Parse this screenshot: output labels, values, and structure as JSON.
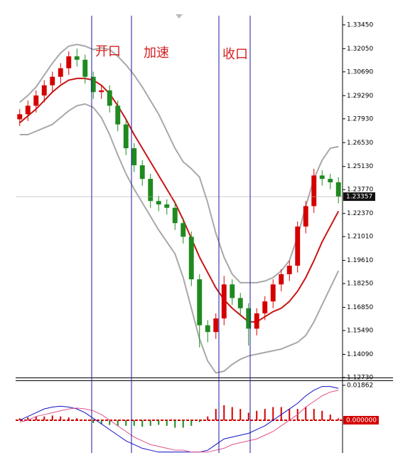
{
  "chart_data": [
    {
      "type": "candlestick",
      "annotations": [
        "开口",
        "加速",
        "收口"
      ],
      "open": [
        1.279,
        1.282,
        1.287,
        1.293,
        1.299,
        1.304,
        1.309,
        1.316,
        1.314,
        1.304,
        1.295,
        1.296,
        1.287,
        1.276,
        1.262,
        1.252,
        1.244,
        1.231,
        1.229,
        1.227,
        1.218,
        1.21,
        1.185,
        1.158,
        1.154,
        1.162,
        1.182,
        1.174,
        1.168,
        1.156,
        1.165,
        1.172,
        1.182,
        1.188,
        1.193,
        1.216,
        1.228,
        1.246,
        1.244,
        1.242
      ],
      "high": [
        1.285,
        1.29,
        1.296,
        1.302,
        1.307,
        1.312,
        1.319,
        1.3205,
        1.317,
        1.307,
        1.299,
        1.299,
        1.29,
        1.279,
        1.265,
        1.255,
        1.247,
        1.234,
        1.232,
        1.23,
        1.221,
        1.213,
        1.188,
        1.161,
        1.165,
        1.187,
        1.185,
        1.177,
        1.171,
        1.168,
        1.175,
        1.185,
        1.191,
        1.196,
        1.219,
        1.231,
        1.25,
        1.249,
        1.247,
        1.245
      ],
      "low": [
        1.275,
        1.278,
        1.283,
        1.289,
        1.295,
        1.3,
        1.305,
        1.31,
        1.3,
        1.291,
        1.291,
        1.283,
        1.272,
        1.258,
        1.248,
        1.24,
        1.227,
        1.225,
        1.223,
        1.214,
        1.206,
        1.181,
        1.145,
        1.148,
        1.15,
        1.158,
        1.17,
        1.164,
        1.146,
        1.152,
        1.161,
        1.168,
        1.178,
        1.184,
        1.189,
        1.212,
        1.224,
        1.24,
        1.238,
        1.2296
      ],
      "close": [
        1.282,
        1.287,
        1.293,
        1.299,
        1.304,
        1.309,
        1.316,
        1.314,
        1.304,
        1.295,
        1.296,
        1.287,
        1.276,
        1.262,
        1.252,
        1.244,
        1.231,
        1.229,
        1.227,
        1.218,
        1.21,
        1.185,
        1.158,
        1.154,
        1.162,
        1.182,
        1.174,
        1.168,
        1.156,
        1.165,
        1.172,
        1.182,
        1.188,
        1.193,
        1.216,
        1.228,
        1.246,
        1.244,
        1.242,
        1.2336
      ],
      "up_color": "#d40000",
      "down_color": "#1f8a1f",
      "series": [
        {
          "color": "#c81414",
          "values": [
            1.277,
            1.281,
            1.285,
            1.29,
            1.295,
            1.299,
            1.302,
            1.303,
            1.303,
            1.302,
            1.299,
            1.294,
            1.287,
            1.279,
            1.27,
            1.262,
            1.254,
            1.246,
            1.238,
            1.23,
            1.22,
            1.209,
            1.198,
            1.189,
            1.18,
            1.173,
            1.168,
            1.164,
            1.16,
            1.16,
            1.163,
            1.166,
            1.168,
            1.172,
            1.178,
            1.186,
            1.196,
            1.207,
            1.216,
            1.225
          ]
        },
        {
          "color": "#a8a8a8",
          "values": [
            1.289,
            1.293,
            1.298,
            1.305,
            1.312,
            1.318,
            1.322,
            1.323,
            1.322,
            1.32,
            1.321,
            1.32,
            1.316,
            1.311,
            1.305,
            1.298,
            1.29,
            1.282,
            1.272,
            1.262,
            1.254,
            1.25,
            1.245,
            1.23,
            1.212,
            1.198,
            1.188,
            1.183,
            1.183,
            1.183,
            1.184,
            1.186,
            1.19,
            1.196,
            1.21,
            1.228,
            1.244,
            1.255,
            1.262,
            1.263
          ]
        },
        {
          "color": "#a8a8a8",
          "values": [
            1.27,
            1.27,
            1.272,
            1.274,
            1.276,
            1.28,
            1.284,
            1.287,
            1.288,
            1.286,
            1.28,
            1.27,
            1.258,
            1.247,
            1.238,
            1.23,
            1.222,
            1.214,
            1.207,
            1.2,
            1.186,
            1.168,
            1.15,
            1.137,
            1.13,
            1.131,
            1.135,
            1.138,
            1.14,
            1.141,
            1.142,
            1.143,
            1.144,
            1.146,
            1.148,
            1.152,
            1.16,
            1.17,
            1.18,
            1.19
          ]
        }
      ],
      "last_price": 1.23357,
      "ylim": [
        1.1273,
        1.3399
      ],
      "yticks": [
        {
          "value": 1.3345,
          "label": "1.33450"
        },
        {
          "value": 1.3205,
          "label": "1.32050"
        },
        {
          "value": 1.3069,
          "label": "1.30690"
        },
        {
          "value": 1.2929,
          "label": "1.29290"
        },
        {
          "value": 1.2793,
          "label": "1.27930"
        },
        {
          "value": 1.2653,
          "label": "1.26530"
        },
        {
          "value": 1.2513,
          "label": "1.25130"
        },
        {
          "value": 1.2377,
          "label": "1.23770"
        },
        {
          "value": 1.2237,
          "label": "1.22370"
        },
        {
          "value": 1.2101,
          "label": "1.21010"
        },
        {
          "value": 1.1961,
          "label": "1.19610"
        },
        {
          "value": 1.1825,
          "label": "1.18250"
        },
        {
          "value": 1.1685,
          "label": "1.16850"
        },
        {
          "value": 1.1549,
          "label": "1.15490"
        },
        {
          "value": 1.1409,
          "label": "1.14090"
        },
        {
          "value": 1.1273,
          "label": "1.12730"
        }
      ]
    },
    {
      "type": "macd",
      "histogram": [
        0.001,
        0.0015,
        0.002,
        0.002,
        0.0025,
        0.002,
        0.0015,
        0.001,
        0.0,
        -0.0015,
        -0.002,
        -0.0025,
        -0.003,
        -0.003,
        -0.003,
        -0.0035,
        -0.003,
        -0.0025,
        -0.003,
        -0.004,
        -0.004,
        -0.003,
        -0.001,
        0.002,
        0.006,
        0.008,
        0.007,
        0.006,
        0.004,
        0.005,
        0.006,
        0.007,
        0.007,
        0.006,
        0.006,
        0.007,
        0.006,
        0.005,
        0.003,
        0.001
      ],
      "up_color": "#d40000",
      "down_color": "#1f8a1f",
      "series": [
        {
          "color": "#1010c8",
          "values": [
            0.0,
            0.002,
            0.004,
            0.006,
            0.007,
            0.0075,
            0.007,
            0.006,
            0.004,
            0.001,
            -0.002,
            -0.005,
            -0.008,
            -0.011,
            -0.013,
            -0.015,
            -0.016,
            -0.017,
            -0.017,
            -0.017,
            -0.017,
            -0.017,
            -0.017,
            -0.016,
            -0.013,
            -0.01,
            -0.009,
            -0.008,
            -0.007,
            -0.005,
            -0.003,
            0.0,
            0.003,
            0.006,
            0.009,
            0.013,
            0.016,
            0.018,
            0.018,
            0.017
          ]
        },
        {
          "color": "#e0508a",
          "values": [
            -0.001,
            0.0,
            0.002,
            0.003,
            0.004,
            0.005,
            0.006,
            0.0065,
            0.006,
            0.005,
            0.003,
            0.0,
            -0.003,
            -0.006,
            -0.009,
            -0.011,
            -0.013,
            -0.014,
            -0.015,
            -0.016,
            -0.016,
            -0.017,
            -0.017,
            -0.017,
            -0.016,
            -0.015,
            -0.013,
            -0.012,
            -0.011,
            -0.01,
            -0.008,
            -0.006,
            -0.003,
            0.0,
            0.003,
            0.007,
            0.01,
            0.013,
            0.015,
            0.016
          ]
        }
      ],
      "ylim": [
        -0.0175,
        0.0205
      ],
      "yticks": [
        0.01862,
        {
          "value": 0,
          "label": "0.000000"
        }
      ]
    }
  ]
}
